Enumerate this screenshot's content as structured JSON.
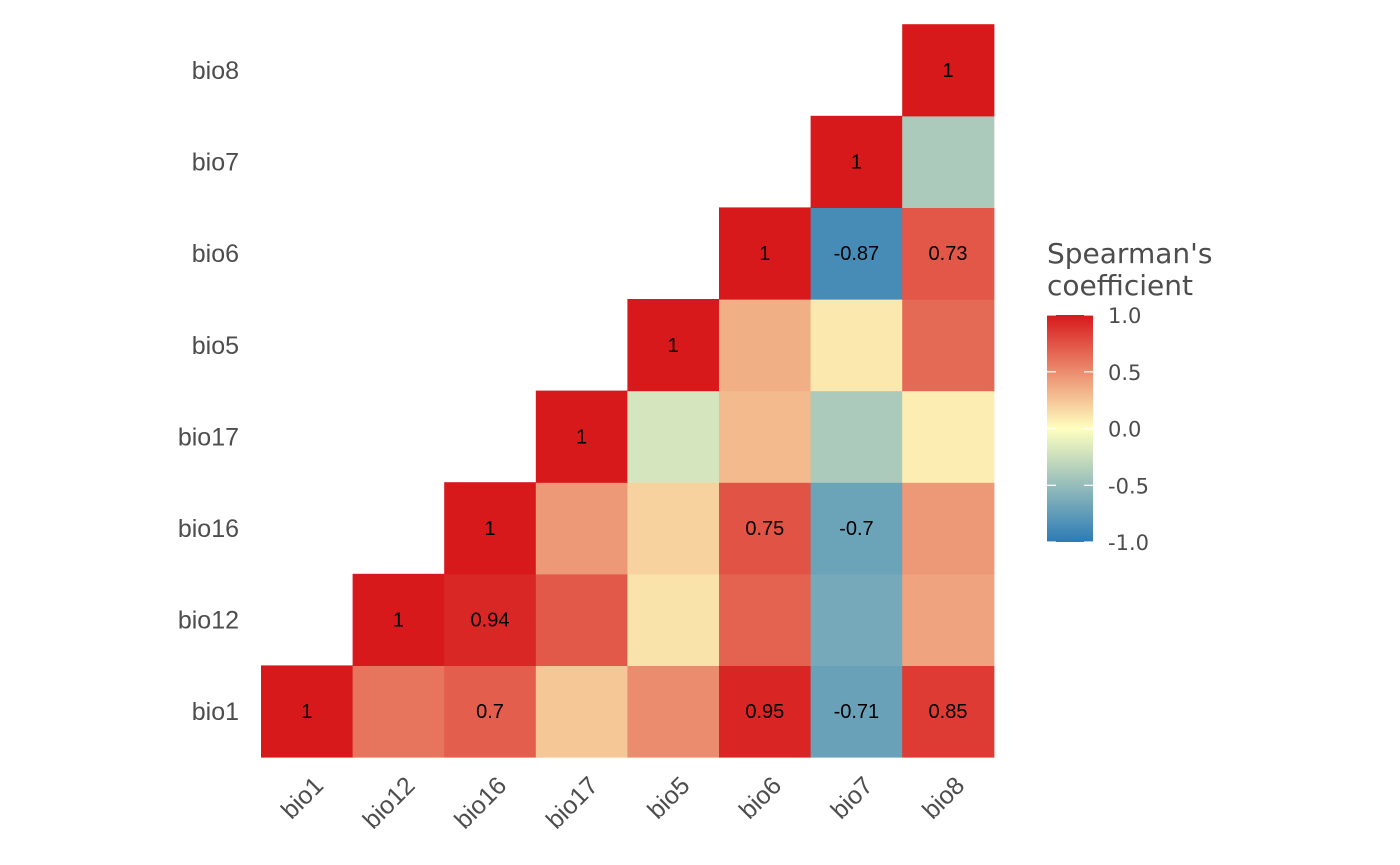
{
  "chart_data": {
    "type": "heatmap",
    "title": "",
    "xlabel": "",
    "ylabel": "",
    "x_categories": [
      "bio1",
      "bio12",
      "bio16",
      "bio17",
      "bio5",
      "bio6",
      "bio7",
      "bio8"
    ],
    "y_categories": [
      "bio1",
      "bio12",
      "bio16",
      "bio17",
      "bio5",
      "bio6",
      "bio7",
      "bio8"
    ],
    "cells": [
      {
        "x": "bio1",
        "y": "bio1",
        "value": 1,
        "label": "1"
      },
      {
        "x": "bio12",
        "y": "bio1",
        "value": 0.6,
        "label": ""
      },
      {
        "x": "bio16",
        "y": "bio1",
        "value": 0.7,
        "label": "0.7"
      },
      {
        "x": "bio17",
        "y": "bio1",
        "value": 0.25,
        "label": ""
      },
      {
        "x": "bio5",
        "y": "bio1",
        "value": 0.5,
        "label": ""
      },
      {
        "x": "bio6",
        "y": "bio1",
        "value": 0.95,
        "label": "0.95"
      },
      {
        "x": "bio7",
        "y": "bio1",
        "value": -0.71,
        "label": "-0.71"
      },
      {
        "x": "bio8",
        "y": "bio1",
        "value": 0.85,
        "label": "0.85"
      },
      {
        "x": "bio12",
        "y": "bio12",
        "value": 1,
        "label": "1"
      },
      {
        "x": "bio16",
        "y": "bio12",
        "value": 0.94,
        "label": "0.94"
      },
      {
        "x": "bio17",
        "y": "bio12",
        "value": 0.72,
        "label": ""
      },
      {
        "x": "bio5",
        "y": "bio12",
        "value": 0.12,
        "label": ""
      },
      {
        "x": "bio6",
        "y": "bio12",
        "value": 0.68,
        "label": ""
      },
      {
        "x": "bio7",
        "y": "bio12",
        "value": -0.65,
        "label": ""
      },
      {
        "x": "bio8",
        "y": "bio12",
        "value": 0.4,
        "label": ""
      },
      {
        "x": "bio16",
        "y": "bio16",
        "value": 1,
        "label": "1"
      },
      {
        "x": "bio17",
        "y": "bio16",
        "value": 0.45,
        "label": ""
      },
      {
        "x": "bio5",
        "y": "bio16",
        "value": 0.2,
        "label": ""
      },
      {
        "x": "bio6",
        "y": "bio16",
        "value": 0.75,
        "label": "0.75"
      },
      {
        "x": "bio7",
        "y": "bio16",
        "value": -0.7,
        "label": "-0.7"
      },
      {
        "x": "bio8",
        "y": "bio16",
        "value": 0.45,
        "label": ""
      },
      {
        "x": "bio17",
        "y": "bio17",
        "value": 1,
        "label": "1"
      },
      {
        "x": "bio5",
        "y": "bio17",
        "value": -0.2,
        "label": ""
      },
      {
        "x": "bio6",
        "y": "bio17",
        "value": 0.3,
        "label": ""
      },
      {
        "x": "bio7",
        "y": "bio17",
        "value": -0.4,
        "label": ""
      },
      {
        "x": "bio8",
        "y": "bio17",
        "value": 0.08,
        "label": ""
      },
      {
        "x": "bio5",
        "y": "bio5",
        "value": 1,
        "label": "1"
      },
      {
        "x": "bio6",
        "y": "bio5",
        "value": 0.35,
        "label": ""
      },
      {
        "x": "bio7",
        "y": "bio5",
        "value": 0.1,
        "label": ""
      },
      {
        "x": "bio8",
        "y": "bio5",
        "value": 0.65,
        "label": ""
      },
      {
        "x": "bio6",
        "y": "bio6",
        "value": 1,
        "label": "1"
      },
      {
        "x": "bio7",
        "y": "bio6",
        "value": -0.87,
        "label": "-0.87"
      },
      {
        "x": "bio8",
        "y": "bio6",
        "value": 0.73,
        "label": "0.73"
      },
      {
        "x": "bio7",
        "y": "bio7",
        "value": 1,
        "label": "1"
      },
      {
        "x": "bio8",
        "y": "bio7",
        "value": -0.4,
        "label": ""
      },
      {
        "x": "bio8",
        "y": "bio8",
        "value": 1,
        "label": "1"
      }
    ],
    "color_scale": {
      "limits": [
        -1,
        1
      ],
      "low": "#2c7bb6",
      "mid": "#ffffbf",
      "high": "#d7191c"
    },
    "legend": {
      "title_lines": [
        "Spearman's",
        "coefficient"
      ],
      "ticks": [
        1.0,
        0.5,
        0.0,
        -0.5,
        -1.0
      ],
      "tick_labels": [
        "1.0",
        "0.5",
        "0.0",
        "-0.5",
        "-1.0"
      ],
      "position": "right"
    },
    "grid": false
  }
}
